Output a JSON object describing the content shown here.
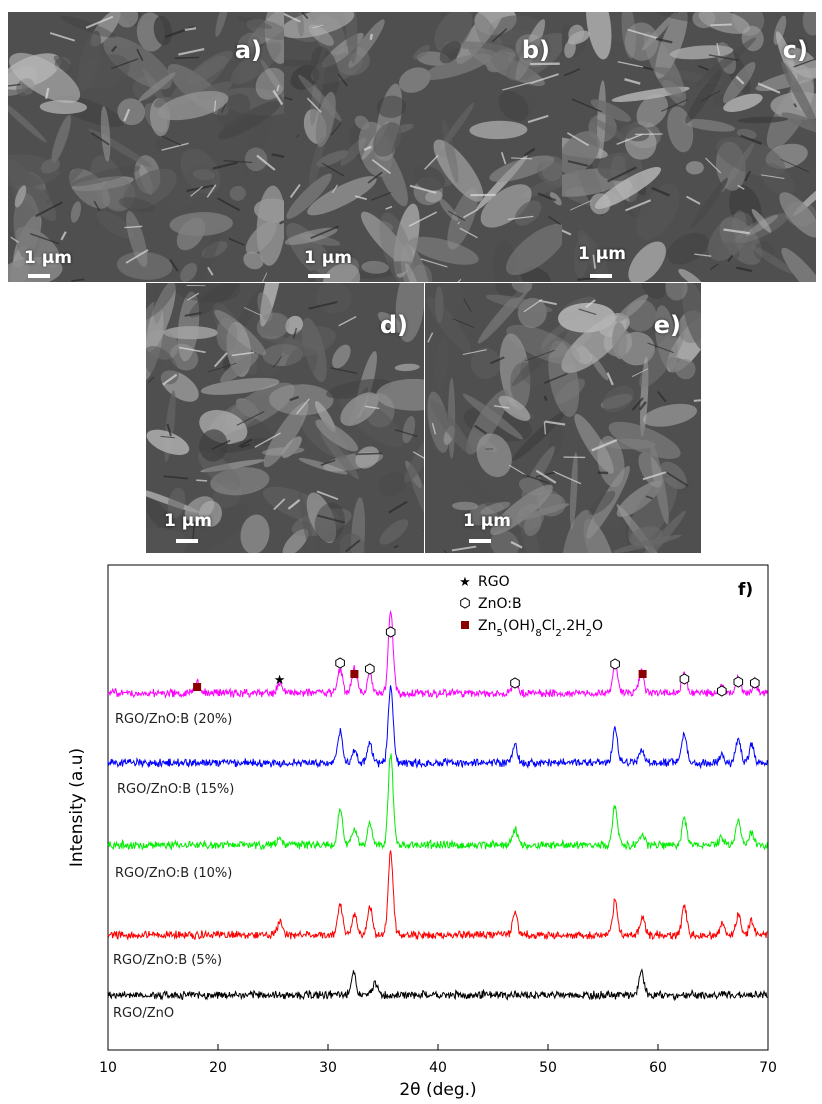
{
  "sem_panels": [
    {
      "label": "a)",
      "scale": "1 µm"
    },
    {
      "label": "b)",
      "scale": "1 µm"
    },
    {
      "label": "c)",
      "scale": "1 µm"
    },
    {
      "label": "d)",
      "scale": "1 µm"
    },
    {
      "label": "e)",
      "scale": "1 µm"
    }
  ],
  "chart_data": {
    "type": "line",
    "panel_label": "f)",
    "xlabel": "2θ (deg.)",
    "ylabel": "Intensity (a.u)",
    "xlim": [
      10,
      70
    ],
    "x_ticks": [
      10,
      20,
      30,
      40,
      50,
      60,
      70
    ],
    "y_ticks": "none",
    "grid": false,
    "legend_position": "top-center",
    "legend": [
      {
        "marker": "star",
        "label": "RGO",
        "label_html": "RGO"
      },
      {
        "marker": "hexagon",
        "label": "ZnO:B",
        "label_html": "ZnO:B"
      },
      {
        "marker": "square",
        "label": "Zn5(OH)8Cl2.2H2O",
        "label_html": "Zn<tspan baseline-shift=\"sub\" font-size=\"10\">5</tspan>(OH)<tspan baseline-shift=\"sub\" font-size=\"10\">8</tspan>Cl<tspan baseline-shift=\"sub\" font-size=\"10\">2</tspan>.2H<tspan baseline-shift=\"sub\" font-size=\"10\">2</tspan>O"
      }
    ],
    "colors": {
      "RGO/ZnO": "#000000",
      "RGO/ZnO:B (5%)": "#ff0000",
      "RGO/ZnO:B (10%)": "#00ee00",
      "RGO/ZnO:B (15%)": "#0000ff",
      "RGO/ZnO:B (20%)": "#ff00ff",
      "square_marker": "#8b0000"
    },
    "series": [
      {
        "name": "RGO/ZnO",
        "peaks": [
          [
            32.3,
            0.8
          ],
          [
            34.3,
            0.5
          ],
          [
            58.5,
            0.9
          ]
        ]
      },
      {
        "name": "RGO/ZnO:B (5%)",
        "peaks": [
          [
            25.6,
            0.5
          ],
          [
            31.1,
            1.2
          ],
          [
            32.4,
            0.8
          ],
          [
            33.8,
            1.1
          ],
          [
            35.7,
            3.2
          ],
          [
            47.0,
            0.9
          ],
          [
            56.1,
            1.3
          ],
          [
            58.6,
            0.7
          ],
          [
            62.4,
            1.1
          ],
          [
            65.8,
            0.4
          ],
          [
            67.3,
            0.8
          ],
          [
            68.5,
            0.5
          ]
        ]
      },
      {
        "name": "RGO/ZnO:B (10%)",
        "peaks": [
          [
            25.6,
            0.3
          ],
          [
            31.1,
            1.4
          ],
          [
            32.4,
            0.6
          ],
          [
            33.8,
            0.8
          ],
          [
            35.7,
            3.5
          ],
          [
            47.0,
            0.6
          ],
          [
            56.1,
            1.5
          ],
          [
            58.6,
            0.4
          ],
          [
            62.4,
            1.0
          ],
          [
            65.8,
            0.3
          ],
          [
            67.3,
            0.9
          ],
          [
            68.5,
            0.5
          ]
        ]
      },
      {
        "name": "RGO/ZnO:B (15%)",
        "peaks": [
          [
            31.1,
            1.2
          ],
          [
            32.4,
            0.5
          ],
          [
            33.8,
            0.8
          ],
          [
            35.7,
            3.0
          ],
          [
            47.0,
            0.7
          ],
          [
            56.1,
            1.3
          ],
          [
            58.5,
            0.5
          ],
          [
            62.4,
            1.2
          ],
          [
            65.8,
            0.4
          ],
          [
            67.3,
            0.9
          ],
          [
            68.5,
            0.7
          ]
        ]
      },
      {
        "name": "RGO/ZnO:B (20%)",
        "peaks": [
          [
            18.1,
            0.4
          ],
          [
            25.6,
            0.4
          ],
          [
            31.1,
            0.9
          ],
          [
            32.4,
            1.0
          ],
          [
            33.8,
            0.8
          ],
          [
            35.7,
            3.1
          ],
          [
            47.0,
            0.5
          ],
          [
            56.1,
            1.1
          ],
          [
            58.5,
            0.8
          ],
          [
            62.4,
            0.8
          ],
          [
            65.8,
            0.3
          ],
          [
            67.3,
            0.6
          ],
          [
            68.8,
            0.4
          ]
        ]
      }
    ],
    "markers_on_20pct": [
      {
        "x": 18.1,
        "marker": "square"
      },
      {
        "x": 25.6,
        "marker": "star"
      },
      {
        "x": 31.1,
        "marker": "hexagon"
      },
      {
        "x": 32.4,
        "marker": "square"
      },
      {
        "x": 33.8,
        "marker": "hexagon"
      },
      {
        "x": 35.7,
        "marker": "hexagon"
      },
      {
        "x": 47.0,
        "marker": "hexagon"
      },
      {
        "x": 56.1,
        "marker": "hexagon"
      },
      {
        "x": 58.6,
        "marker": "square"
      },
      {
        "x": 62.4,
        "marker": "hexagon"
      },
      {
        "x": 65.8,
        "marker": "hexagon"
      },
      {
        "x": 67.3,
        "marker": "hexagon"
      },
      {
        "x": 68.8,
        "marker": "hexagon"
      }
    ]
  }
}
